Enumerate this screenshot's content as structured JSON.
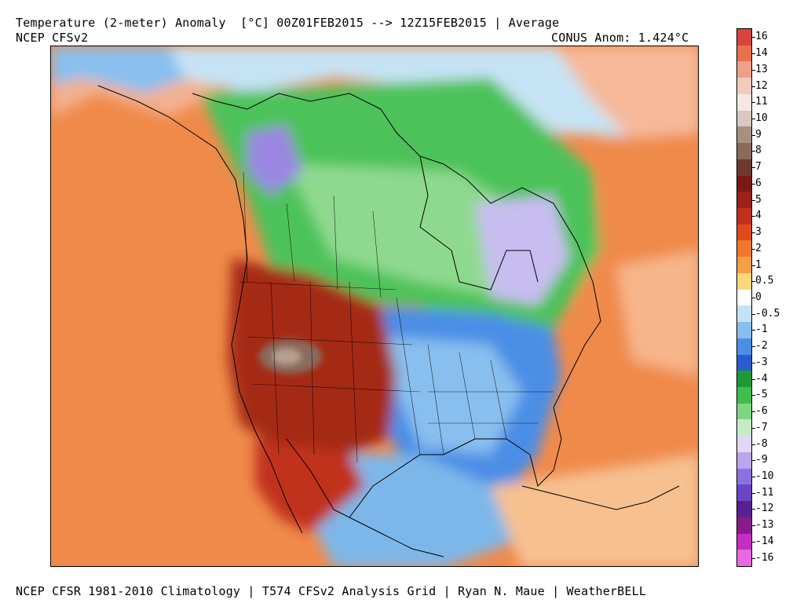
{
  "header": {
    "title": "Temperature (2-meter) Anomaly  [°C] 00Z01FEB2015 --> 12Z15FEB2015 | Average",
    "source": "NCEP CFSv2",
    "conus_anomaly": "CONUS Anom: 1.424°C"
  },
  "footer": "NCEP CFSR 1981-2010 Climatology | T574 CFSv2 Analysis Grid | Ryan N. Maue | WeatherBELL",
  "colorbar": {
    "labels": [
      "16",
      "14",
      "13",
      "12",
      "11",
      "10",
      "9",
      "8",
      "7",
      "6",
      "5",
      "4",
      "3",
      "2",
      "1",
      "0.5",
      "0",
      "-0.5",
      "-1",
      "-2",
      "-3",
      "-4",
      "-5",
      "-6",
      "-7",
      "-8",
      "-9",
      "-10",
      "-11",
      "-12",
      "-13",
      "-14",
      "-16"
    ],
    "colors": [
      "#d9453c",
      "#e8724d",
      "#f0a088",
      "#f3cbbd",
      "#f5e8e2",
      "#d8c8c0",
      "#a89080",
      "#8a6a5c",
      "#6e3a2e",
      "#7a1a12",
      "#9a2216",
      "#c1301c",
      "#e0481e",
      "#f2772d",
      "#f5a043",
      "#f9d87a",
      "#ffffff",
      "#c6e3f5",
      "#89bfee",
      "#4b8ee6",
      "#2a5ccf",
      "#1b9a35",
      "#3fbd4d",
      "#7ed67e",
      "#c6ecc6",
      "#e0d8f4",
      "#b9a6ec",
      "#8a72de",
      "#6b45c8",
      "#5b1f94",
      "#8a1a8a",
      "#c42ec2",
      "#e86ae0"
    ]
  },
  "map": {
    "region": "North America",
    "palette": {
      "ocean_warm": "#f08a4b",
      "hot_west": "#a52a18",
      "peak_anomaly": "#8a6a5c",
      "canada_cold": "#4dc25a",
      "east_cold": "#4b8ee6",
      "coast_line": "#000000"
    }
  }
}
